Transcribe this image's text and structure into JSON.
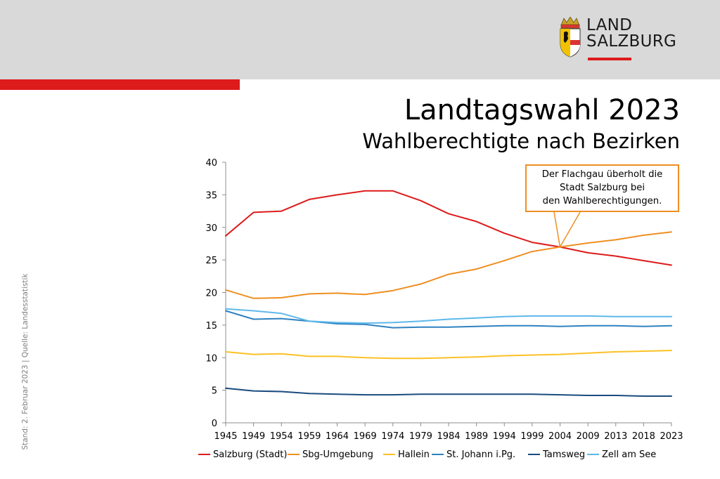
{
  "slide": {
    "title": "Landtagswahl 2023",
    "subtitle": "Wahlberechtigte nach Bezirken",
    "side_note": "Stand: 2. Februar 2023 | Quelle: Landesstatistik"
  },
  "logo": {
    "line1": "LAND",
    "line2": "SALZBURG",
    "accent_color": "#dd1b1b"
  },
  "chart_data": {
    "type": "line",
    "title": "",
    "xlabel": "",
    "ylabel": "",
    "x": [
      "1945",
      "1949",
      "1954",
      "1959",
      "1964",
      "1969",
      "1974",
      "1979",
      "1984",
      "1989",
      "1994",
      "1999",
      "2004",
      "2009",
      "2013",
      "2018",
      "2023"
    ],
    "ylim": [
      0,
      40
    ],
    "yticks": [
      0,
      5,
      10,
      15,
      20,
      25,
      30,
      35,
      40
    ],
    "grid": false,
    "legend": "bottom",
    "series": [
      {
        "name": "Salzburg (Stadt)",
        "color": "#dd1b1b",
        "values": [
          28.7,
          32.3,
          32.5,
          34.3,
          35.0,
          35.6,
          35.6,
          34.1,
          32.1,
          30.9,
          29.1,
          27.7,
          27.0,
          26.1,
          25.6,
          24.9,
          24.2
        ]
      },
      {
        "name": "Sbg-Umgebung",
        "color": "#ee8f22",
        "values": [
          20.4,
          19.1,
          19.2,
          19.8,
          19.9,
          19.7,
          20.3,
          21.3,
          22.8,
          23.6,
          24.9,
          26.3,
          27.0,
          27.6,
          28.1,
          28.8,
          29.3
        ]
      },
      {
        "name": "Hallein",
        "color": "#fdc125",
        "values": [
          10.9,
          10.5,
          10.6,
          10.2,
          10.2,
          10.0,
          9.9,
          9.9,
          10.0,
          10.1,
          10.3,
          10.4,
          10.5,
          10.7,
          10.9,
          11.0,
          11.1
        ]
      },
      {
        "name": "St. Johann i.Pg.",
        "color": "#2f82c0",
        "values": [
          17.2,
          15.9,
          16.0,
          15.6,
          15.2,
          15.1,
          14.6,
          14.7,
          14.7,
          14.8,
          14.9,
          14.9,
          14.8,
          14.9,
          14.9,
          14.8,
          14.9
        ]
      },
      {
        "name": "Tamsweg",
        "color": "#1b4b7f",
        "values": [
          5.3,
          4.9,
          4.8,
          4.5,
          4.4,
          4.3,
          4.3,
          4.4,
          4.4,
          4.4,
          4.4,
          4.4,
          4.3,
          4.2,
          4.2,
          4.1,
          4.1
        ]
      },
      {
        "name": "Zell am See",
        "color": "#5db8ea",
        "values": [
          17.5,
          17.2,
          16.8,
          15.6,
          15.4,
          15.3,
          15.4,
          15.6,
          15.9,
          16.1,
          16.3,
          16.4,
          16.4,
          16.4,
          16.3,
          16.3,
          16.3
        ]
      }
    ],
    "annotation": {
      "lines": [
        "Der Flachgau überholt die",
        "Stadt Salzburg bei",
        "den Wahlberechtigungen."
      ],
      "x": "2004",
      "y": 27.0,
      "color": "#ee8f22"
    }
  }
}
